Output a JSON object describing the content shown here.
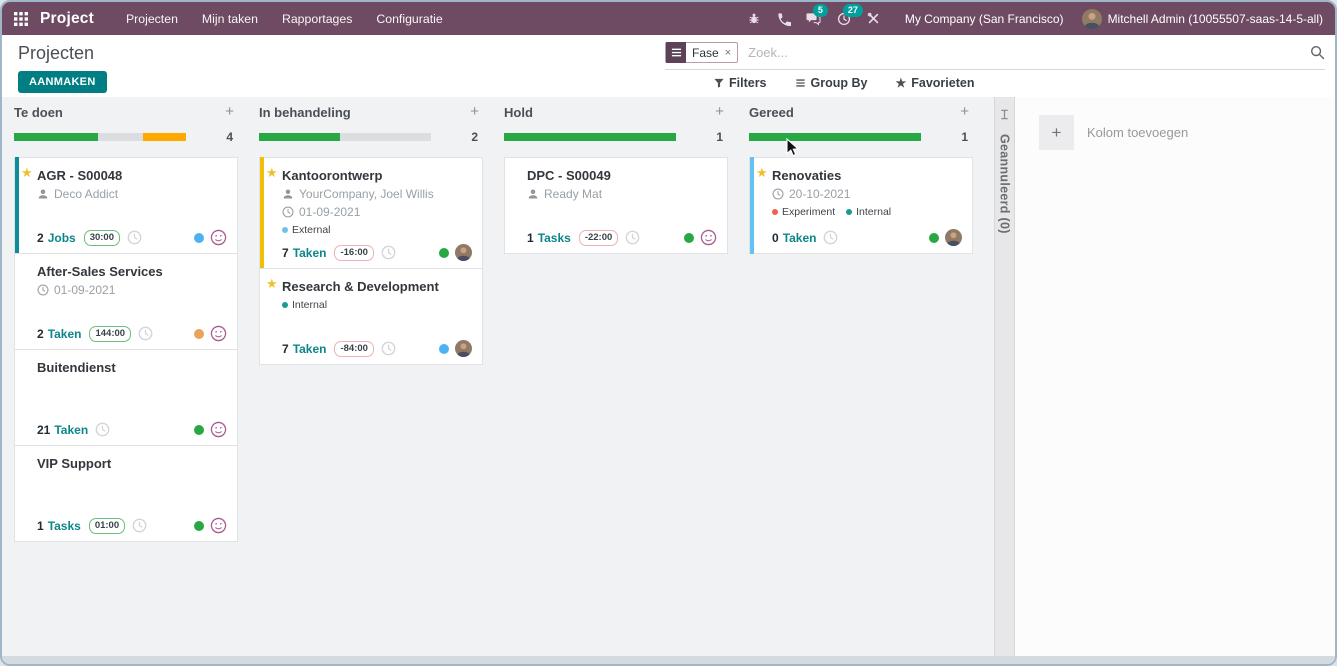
{
  "icons": {
    "plus": "+",
    "close": "×",
    "star": "★"
  },
  "navbar": {
    "app": "Project",
    "menu": [
      "Projecten",
      "Mijn taken",
      "Rapportages",
      "Configuratie"
    ],
    "messages_badge": "5",
    "activities_badge": "27",
    "company": "My Company (San Francisco)",
    "user": "Mitchell Admin (10055507-saas-14-5-all)"
  },
  "control_panel": {
    "title": "Projecten",
    "create_button": "AANMAKEN",
    "search_facet": "Fase",
    "search_placeholder": "Zoek...",
    "filters": "Filters",
    "group_by": "Group By",
    "favorites": "Favorieten"
  },
  "board": {
    "collapsed_column": "Geannuleerd (0)",
    "add_column": "Kolom toevoegen",
    "columns": [
      {
        "name": "Te doen",
        "count": "4",
        "progress": [
          {
            "color": "#28a745",
            "pct": 49
          },
          {
            "color": "#dcdde0",
            "pct": 26
          },
          {
            "color": "#ffa800",
            "pct": 25
          }
        ],
        "cards": [
          {
            "bar": "#0e8c99",
            "star": true,
            "title": "AGR - S00048",
            "contact": "Deco Addict",
            "footer": {
              "num": "2",
              "label": "Jobs",
              "badge": "30:00",
              "badge_type": "pos",
              "dot": "#4cb3f2",
              "avatar": "smiley"
            }
          },
          {
            "title": "After-Sales Services",
            "date": "01-09-2021",
            "footer": {
              "num": "2",
              "label": "Taken",
              "badge": "144:00",
              "badge_type": "pos",
              "dot": "#eba35c",
              "avatar": "smiley"
            }
          },
          {
            "title": "Buitendienst",
            "footer": {
              "num": "21",
              "label": "Taken",
              "dot": "#28a745",
              "avatar": "smiley"
            }
          },
          {
            "title": "VIP Support",
            "footer": {
              "num": "1",
              "label": "Tasks",
              "badge": "01:00",
              "badge_type": "pos",
              "dot": "#28a745",
              "avatar": "smiley"
            }
          }
        ]
      },
      {
        "name": "In behandeling",
        "count": "2",
        "progress": [
          {
            "color": "#28a745",
            "pct": 47
          }
        ],
        "cards": [
          {
            "bar": "#efc007",
            "star": true,
            "title": "Kantoorontwerp",
            "contact": "YourCompany, Joel Willis",
            "date": "01-09-2021",
            "tags": [
              {
                "color": "#6cc1ed",
                "label": "External"
              }
            ],
            "footer": {
              "num": "7",
              "label": "Taken",
              "badge": "-16:00",
              "badge_type": "neg",
              "dot": "#28a745",
              "avatar": "photo"
            }
          },
          {
            "star": true,
            "title": "Research & Development",
            "tags": [
              {
                "color": "#1a9b91",
                "label": "Internal"
              }
            ],
            "footer": {
              "num": "7",
              "label": "Taken",
              "badge": "-84:00",
              "badge_type": "neg",
              "dot": "#4cb3f2",
              "avatar": "photo"
            }
          }
        ]
      },
      {
        "name": "Hold",
        "count": "1",
        "progress": [
          {
            "color": "#28a745",
            "pct": 100
          }
        ],
        "cards": [
          {
            "title": "DPC - S00049",
            "contact": "Ready Mat",
            "footer": {
              "num": "1",
              "label": "Tasks",
              "badge": "-22:00",
              "badge_type": "neg",
              "dot": "#28a745",
              "avatar": "smiley"
            }
          }
        ]
      },
      {
        "name": "Gereed",
        "count": "1",
        "progress": [
          {
            "color": "#28a745",
            "pct": 100
          }
        ],
        "cards": [
          {
            "bar": "#64c1f4",
            "star": true,
            "title": "Renovaties",
            "date": "20-10-2021",
            "tags": [
              {
                "color": "#f06050",
                "label": "Experiment"
              },
              {
                "color": "#1a9b91",
                "label": "Internal"
              }
            ],
            "footer": {
              "num": "0",
              "label": "Taken",
              "dot": "#28a745",
              "avatar": "photo"
            }
          }
        ]
      }
    ]
  }
}
